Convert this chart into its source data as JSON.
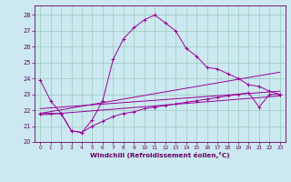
{
  "xlabel": "Windchill (Refroidissement éolien,°C)",
  "bg_color": "#cce8f0",
  "grid_color": "#99ccbb",
  "line_color": "#990099",
  "tick_color": "#660066",
  "xlim": [
    -0.5,
    23.5
  ],
  "ylim": [
    20,
    28.6
  ],
  "xticks": [
    0,
    1,
    2,
    3,
    4,
    5,
    6,
    7,
    8,
    9,
    10,
    11,
    12,
    13,
    14,
    15,
    16,
    17,
    18,
    19,
    20,
    21,
    22,
    23
  ],
  "yticks": [
    20,
    21,
    22,
    23,
    24,
    25,
    26,
    27,
    28
  ],
  "curve1_x": [
    0,
    1,
    2,
    3,
    4,
    5,
    6,
    7,
    8,
    9,
    10,
    11,
    12,
    13,
    14,
    15,
    16,
    17,
    18,
    19,
    20,
    21,
    22,
    23
  ],
  "curve1_y": [
    23.9,
    22.6,
    21.8,
    20.7,
    20.6,
    21.4,
    22.6,
    25.2,
    26.5,
    27.2,
    27.7,
    28.0,
    27.5,
    27.0,
    25.9,
    25.4,
    24.7,
    24.6,
    24.3,
    24.0,
    23.6,
    23.5,
    23.2,
    23.0
  ],
  "curve2_x": [
    0,
    1,
    2,
    3,
    4,
    5,
    6,
    7,
    8,
    9,
    10,
    11,
    12,
    13,
    14,
    15,
    16,
    17,
    18,
    19,
    20,
    21,
    22,
    23
  ],
  "curve2_y": [
    21.8,
    21.8,
    21.8,
    20.7,
    20.6,
    21.0,
    21.3,
    21.6,
    21.8,
    21.9,
    22.1,
    22.2,
    22.3,
    22.4,
    22.5,
    22.6,
    22.7,
    22.8,
    22.9,
    23.0,
    23.1,
    22.2,
    23.0,
    23.0
  ],
  "line1_x": [
    0,
    23
  ],
  "line1_y": [
    21.8,
    24.4
  ],
  "line2_x": [
    0,
    23
  ],
  "line2_y": [
    22.1,
    23.2
  ],
  "line3_x": [
    0,
    23
  ],
  "line3_y": [
    21.7,
    22.9
  ]
}
